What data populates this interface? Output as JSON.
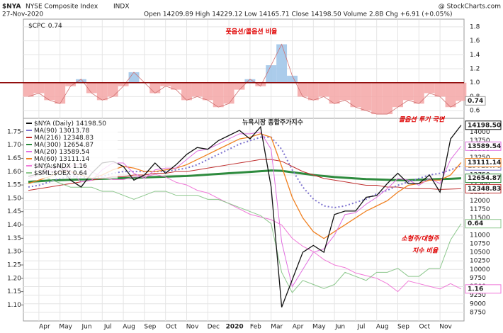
{
  "header": {
    "symbol": "$NYA",
    "name": "NYSE Composite Index",
    "exchange": "INDX",
    "date": "27-Nov-2020",
    "quote": "Open 14209.89 High 14229.12 Low 14165.71 Close 14198.50 Volume 2.8B Chg +6.91 (+0.05%)",
    "credit": "@ StockCharts.com"
  },
  "chart_data": [
    {
      "type": "area",
      "annotation": "풋옵션/콜옵션 비율",
      "categories": [
        null,
        "Apr",
        null,
        "May",
        null,
        "Jun",
        null,
        "Jul",
        null,
        "Aug",
        null,
        "Sep",
        null,
        "Oct",
        null,
        "Nov",
        null,
        "Dec",
        null,
        "2020",
        null,
        "Feb",
        null,
        "Mar",
        null,
        "Apr",
        null,
        "May",
        null,
        "Jun",
        null,
        "Jul",
        null,
        "Aug",
        null,
        "Sep",
        null,
        "Oct",
        null,
        "Nov",
        null,
        null
      ],
      "series": [
        {
          "name": "$CPC",
          "last_label": "0.74",
          "color": "#f4a6a6",
          "color_above": "#9cc3e8",
          "values": [
            0.8,
            0.85,
            0.75,
            0.7,
            0.95,
            1.05,
            0.85,
            0.75,
            0.8,
            0.95,
            1.15,
            1.0,
            0.85,
            0.95,
            0.9,
            0.75,
            0.8,
            0.75,
            0.65,
            0.7,
            0.9,
            1.05,
            0.95,
            1.25,
            1.55,
            1.1,
            0.8,
            0.75,
            0.8,
            0.7,
            0.75,
            0.65,
            0.6,
            0.55,
            0.55,
            0.65,
            0.75,
            0.7,
            0.85,
            0.8,
            0.65,
            0.74
          ]
        }
      ],
      "reference_line": 1.0,
      "reference_color": "#8b0000",
      "ylim": [
        0.5,
        1.9
      ],
      "yticks": [
        0.6,
        0.8,
        {
          "value": 1.0,
          "label": "1.0"
        },
        1.2,
        1.4,
        1.6,
        1.8
      ]
    },
    {
      "type": "line",
      "annotations": [
        "뉴욕시장 종합주가지수",
        "콜옵션 투기 국면",
        "소형주/대형주",
        "지수 비율"
      ],
      "categories": [
        null,
        "Apr",
        null,
        "May",
        null,
        "Jun",
        null,
        "Jul",
        null,
        "Aug",
        null,
        "Sep",
        null,
        "Oct",
        null,
        "Nov",
        null,
        "Dec",
        null,
        "2020",
        null,
        "Feb",
        null,
        "Mar",
        null,
        "Apr",
        null,
        "May",
        null,
        "Jun",
        null,
        "Jul",
        null,
        "Aug",
        null,
        "Sep",
        null,
        "Oct",
        null,
        "Nov",
        null,
        null
      ],
      "series": [
        {
          "name": "$NYA (Daily)",
          "last_label": "14198.50",
          "color": "#111111",
          "width": 1.3,
          "values": [
            12700,
            12800,
            13000,
            13000,
            12600,
            12400,
            12800,
            13100,
            13150,
            13000,
            12600,
            12750,
            13100,
            12800,
            13050,
            13350,
            13550,
            13500,
            13750,
            13900,
            14050,
            13800,
            14150,
            12400,
            8900,
            9700,
            10500,
            10700,
            10500,
            11600,
            11700,
            11700,
            12100,
            12150,
            12500,
            12800,
            12500,
            12500,
            12750,
            12250,
            13800,
            14198.5
          ]
        },
        {
          "name": "MA(90)",
          "last_label": "13013.78",
          "color": "#7f74cf",
          "width": 2,
          "dash": "2 3",
          "values": [
            12400,
            12450,
            12550,
            12650,
            12700,
            12700,
            12650,
            12700,
            12800,
            12850,
            12850,
            12850,
            12850,
            12850,
            12900,
            12950,
            13050,
            13200,
            13350,
            13500,
            13650,
            13750,
            13850,
            13850,
            13500,
            12900,
            12400,
            12050,
            11850,
            11800,
            11850,
            11950,
            12050,
            12200,
            12300,
            12450,
            12550,
            12650,
            12750,
            12800,
            12900,
            13013.78
          ]
        },
        {
          "name": "MA(216)",
          "last_label": "12348.83",
          "color": "#c03030",
          "width": 1,
          "values": [
            12300,
            12350,
            12400,
            12450,
            12500,
            12550,
            12600,
            12650,
            12700,
            12700,
            12750,
            12750,
            12800,
            12800,
            12850,
            12850,
            12900,
            12950,
            13000,
            13050,
            13100,
            13150,
            13200,
            13200,
            13150,
            13000,
            12850,
            12750,
            12650,
            12600,
            12550,
            12500,
            12450,
            12450,
            12400,
            12400,
            12350,
            12350,
            12350,
            12330,
            12340,
            12348.83
          ]
        },
        {
          "name": "MA(300)",
          "last_label": "12654.87",
          "color": "#2e8b3e",
          "width": 3,
          "values": [
            12550,
            12570,
            12590,
            12600,
            12610,
            12620,
            12630,
            12640,
            12650,
            12660,
            12670,
            12680,
            12690,
            12700,
            12710,
            12720,
            12740,
            12760,
            12780,
            12800,
            12820,
            12840,
            12860,
            12880,
            12870,
            12830,
            12790,
            12750,
            12720,
            12690,
            12670,
            12650,
            12630,
            12620,
            12610,
            12600,
            12600,
            12610,
            12620,
            12630,
            12640,
            12654.87
          ]
        },
        {
          "name": "MA(20)",
          "last_label": "13589.54",
          "color": "#e070e0",
          "width": 1,
          "values": [
            12650,
            12750,
            12900,
            13000,
            12850,
            12550,
            12600,
            12900,
            13100,
            13100,
            12800,
            12650,
            12900,
            12950,
            12950,
            13200,
            13450,
            13500,
            13650,
            13800,
            13950,
            13950,
            14000,
            13500,
            10800,
            9500,
            10000,
            10500,
            10600,
            11000,
            11600,
            11650,
            11900,
            12100,
            12350,
            12650,
            12600,
            12450,
            12650,
            12500,
            13200,
            13589.54
          ]
        },
        {
          "name": "MA(60)",
          "last_label": "13111.14",
          "color": "#f08020",
          "width": 1.3,
          "values": [
            12500,
            12600,
            12700,
            12850,
            12850,
            12750,
            12650,
            12750,
            12900,
            13000,
            12950,
            12850,
            12850,
            12900,
            12950,
            13050,
            13200,
            13350,
            13500,
            13650,
            13800,
            13850,
            13950,
            13850,
            13000,
            12100,
            11500,
            11100,
            10900,
            11100,
            11300,
            11500,
            11700,
            11850,
            12000,
            12250,
            12450,
            12500,
            12600,
            12600,
            12750,
            13111.14
          ]
        },
        {
          "name": "$NYA:$NDX",
          "last_label": "1.16",
          "color": "#f07ad8",
          "width": 1,
          "axis": "y2",
          "values": [
            1.63,
            1.62,
            1.6,
            1.6,
            1.62,
            1.63,
            1.6,
            1.58,
            1.57,
            1.57,
            1.58,
            1.58,
            1.59,
            1.58,
            1.56,
            1.55,
            1.53,
            1.52,
            1.5,
            1.48,
            1.46,
            1.44,
            1.43,
            1.42,
            1.4,
            1.35,
            1.32,
            1.3,
            1.27,
            1.25,
            1.24,
            1.22,
            1.21,
            1.2,
            1.18,
            1.15,
            1.19,
            1.18,
            1.17,
            1.16,
            1.18,
            1.16
          ]
        },
        {
          "name": "$SML:$OEX",
          "last_label": "0.64",
          "color": "#8cc78c",
          "width": 1,
          "axis": "y3",
          "values": [
            0.76,
            0.76,
            0.75,
            0.74,
            0.73,
            0.73,
            0.73,
            0.72,
            0.72,
            0.71,
            0.7,
            0.71,
            0.72,
            0.72,
            0.71,
            0.71,
            0.71,
            0.7,
            0.7,
            0.69,
            0.68,
            0.67,
            0.66,
            0.64,
            0.52,
            0.47,
            0.5,
            0.49,
            0.48,
            0.49,
            0.52,
            0.51,
            0.5,
            0.52,
            0.52,
            0.53,
            0.51,
            0.51,
            0.53,
            0.53,
            0.6,
            0.64
          ]
        }
      ],
      "ylim": [
        8500,
        14400
      ],
      "yticks": [
        8750,
        9000,
        9250,
        9500,
        9750,
        10000,
        10250,
        10500,
        10750,
        11000,
        11250,
        11500,
        11750,
        12000,
        12250,
        12500,
        12750,
        13000,
        13250,
        13500,
        13750,
        14000
      ],
      "y2lim": [
        1.04,
        1.8
      ],
      "y2ticks": [
        {
          "value": 1.1,
          "label": "1.10"
        },
        1.15,
        {
          "value": 1.2,
          "label": "1.20"
        },
        1.25,
        {
          "value": 1.3,
          "label": "1.30"
        },
        1.35,
        {
          "value": 1.4,
          "label": "1.40"
        },
        1.45,
        {
          "value": 1.5,
          "label": "1.50"
        },
        1.55,
        {
          "value": 1.6,
          "label": "1.60"
        },
        1.65,
        {
          "value": 1.7,
          "label": "1.70"
        },
        1.75
      ],
      "y3lim": [
        0.4,
        0.9
      ],
      "grid": true
    }
  ]
}
